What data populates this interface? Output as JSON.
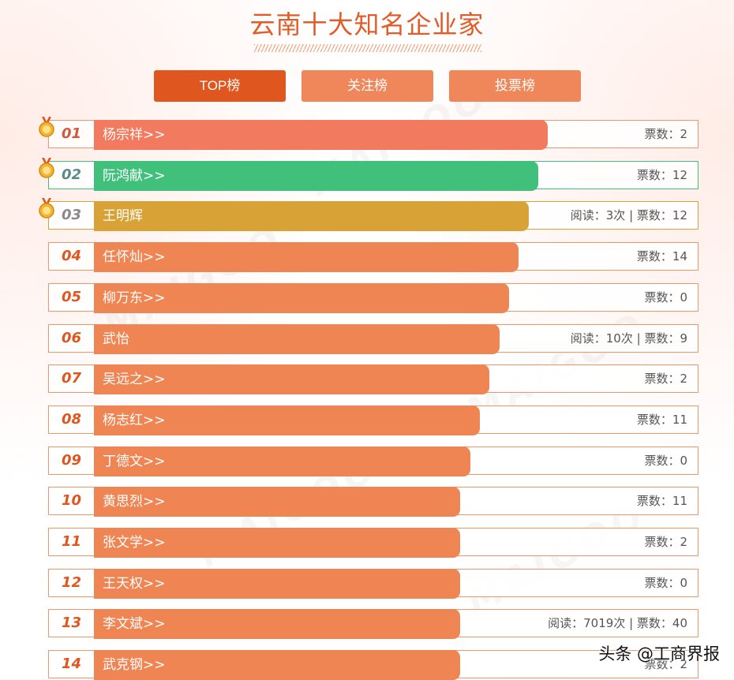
{
  "page": {
    "title": "云南十大知名企业家",
    "credit": "头条 @工商界报",
    "watermark": "MAIGOO"
  },
  "tabs": [
    {
      "label": "TOP榜",
      "active": true
    },
    {
      "label": "关注榜",
      "active": false
    },
    {
      "label": "投票榜",
      "active": false
    }
  ],
  "colors": {
    "accent": "#e0561f",
    "bar_default": "#f08554",
    "bar_first": "#f27a5e",
    "bar_second": "#41c07c",
    "bar_third": "#d8a236",
    "row_border_default": "#f0956c"
  },
  "rankings": [
    {
      "rank": "01",
      "name": "杨宗祥>>",
      "stats": "票数：2",
      "medal": true,
      "color": "#f27a5e",
      "border": "#f0956c",
      "rank_color": "#d6573d",
      "level": 0.7
    },
    {
      "rank": "02",
      "name": "阮鸿献>>",
      "stats": "票数：12",
      "medal": true,
      "color": "#41c07c",
      "border": "#41c07c",
      "rank_color": "#5a8a8a",
      "level": 0.685
    },
    {
      "rank": "03",
      "name": "王明辉",
      "stats": "阅读：3次 | 票数：12",
      "medal": true,
      "color": "#d8a236",
      "border": "#d8a236",
      "rank_color": "#8a8a8a",
      "level": 0.67
    },
    {
      "rank": "04",
      "name": "任怀灿>>",
      "stats": "票数：14",
      "medal": false,
      "color": "#f08554",
      "border": "#f0956c",
      "rank_color": "#e0561f",
      "level": 0.655
    },
    {
      "rank": "05",
      "name": "柳万东>>",
      "stats": "票数：0",
      "medal": false,
      "color": "#f08554",
      "border": "#f0956c",
      "rank_color": "#e0561f",
      "level": 0.64
    },
    {
      "rank": "06",
      "name": "武怡",
      "stats": "阅读：10次 | 票数：9",
      "medal": false,
      "color": "#f08554",
      "border": "#f0956c",
      "rank_color": "#e0561f",
      "level": 0.625
    },
    {
      "rank": "07",
      "name": "吴远之>>",
      "stats": "票数：2",
      "medal": false,
      "color": "#f08554",
      "border": "#f0956c",
      "rank_color": "#e0561f",
      "level": 0.61
    },
    {
      "rank": "08",
      "name": "杨志红>>",
      "stats": "票数：11",
      "medal": false,
      "color": "#f08554",
      "border": "#f0956c",
      "rank_color": "#e0561f",
      "level": 0.595
    },
    {
      "rank": "09",
      "name": "丁德文>>",
      "stats": "票数：0",
      "medal": false,
      "color": "#f08554",
      "border": "#f0956c",
      "rank_color": "#e0561f",
      "level": 0.58
    },
    {
      "rank": "10",
      "name": "黄思烈>>",
      "stats": "票数：11",
      "medal": false,
      "color": "#f08554",
      "border": "#f0956c",
      "rank_color": "#e0561f",
      "level": 0.565
    },
    {
      "rank": "11",
      "name": "张文学>>",
      "stats": "票数：2",
      "medal": false,
      "color": "#f08554",
      "border": "#f0956c",
      "rank_color": "#e0561f",
      "level": 0.565
    },
    {
      "rank": "12",
      "name": "王天权>>",
      "stats": "票数：0",
      "medal": false,
      "color": "#f08554",
      "border": "#f0956c",
      "rank_color": "#e0561f",
      "level": 0.565
    },
    {
      "rank": "13",
      "name": "李文斌>>",
      "stats": "阅读：7019次 | 票数：40",
      "medal": false,
      "color": "#f08554",
      "border": "#f0956c",
      "rank_color": "#e0561f",
      "level": 0.565
    },
    {
      "rank": "14",
      "name": "武克钢>>",
      "stats": "票数：2",
      "medal": false,
      "color": "#f08554",
      "border": "#f0956c",
      "rank_color": "#e0561f",
      "level": 0.565
    }
  ]
}
